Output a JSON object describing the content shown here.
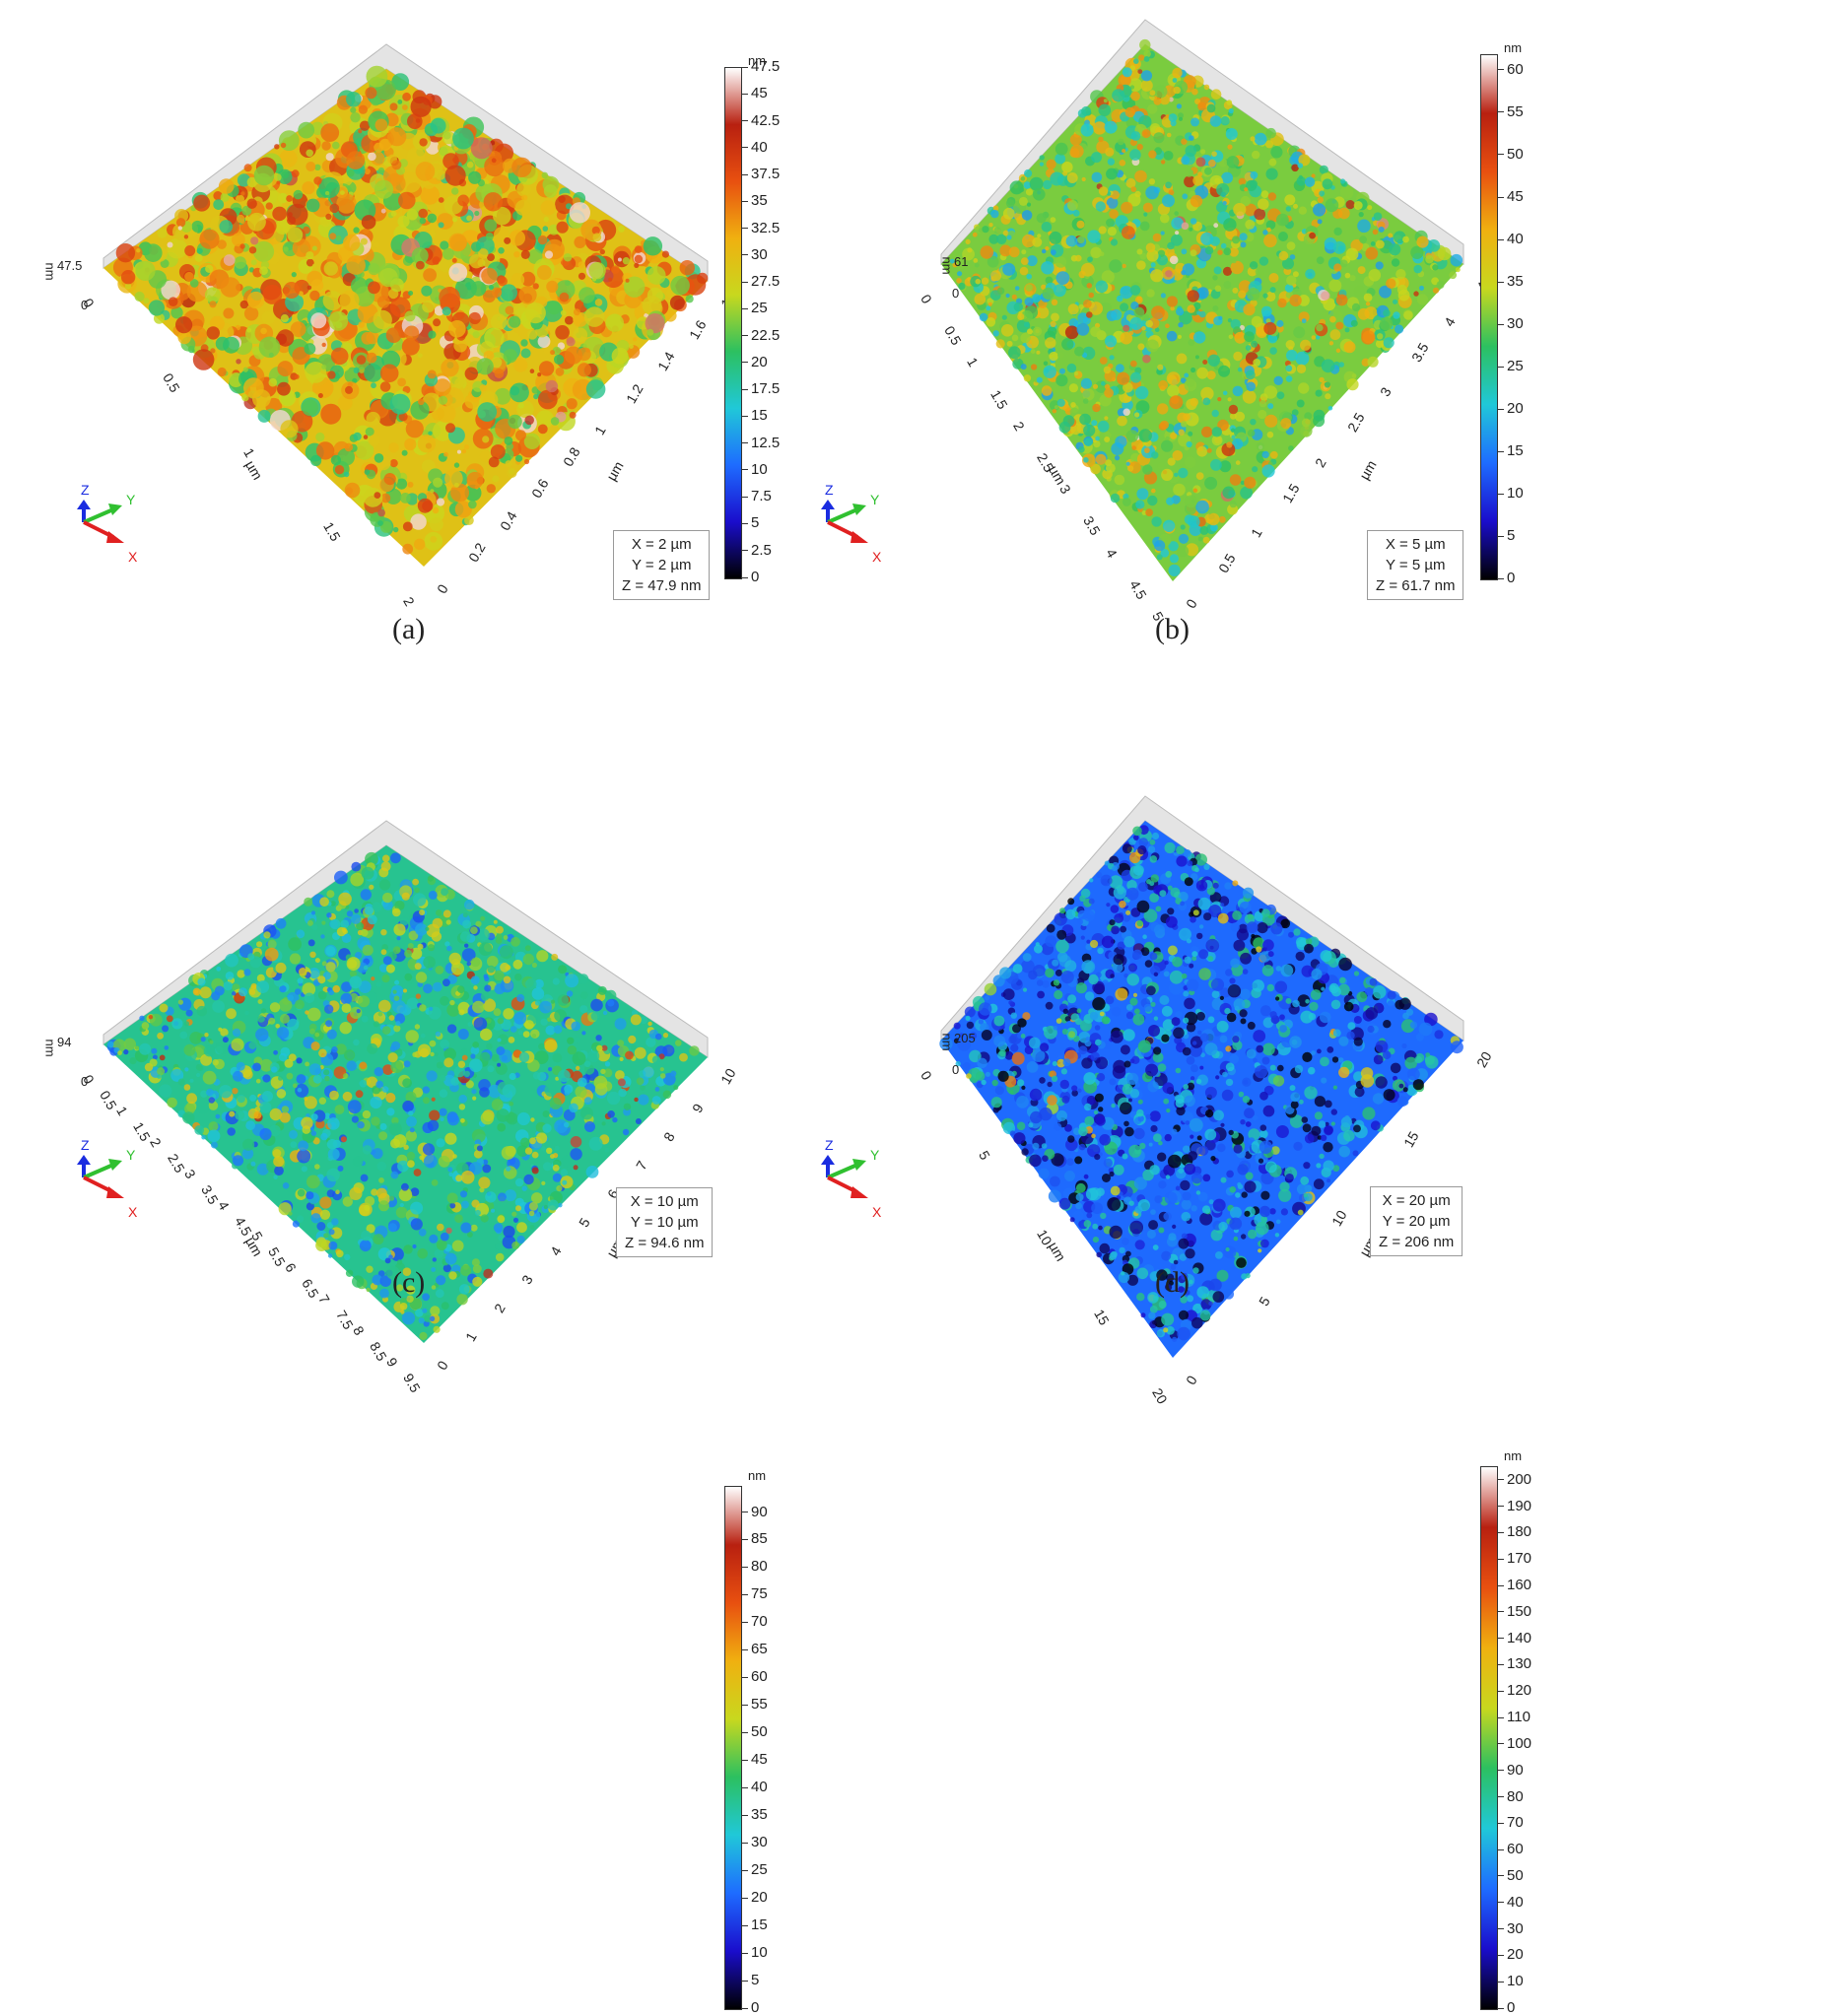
{
  "panels": [
    {
      "caption": "(a)",
      "z_max_label": "47.5",
      "z_zero_label": "0",
      "z_unit": "nm",
      "colorbar_unit": "nm",
      "colorbar_ticks": [
        "47.5",
        "45",
        "42.5",
        "40",
        "37.5",
        "35",
        "32.5",
        "30",
        "27.5",
        "25",
        "22.5",
        "20",
        "17.5",
        "15",
        "12.5",
        "10",
        "7.5",
        "5",
        "2.5",
        "0"
      ],
      "x_ticks": [
        "0",
        "0.5",
        "1",
        "1.5",
        "2"
      ],
      "y_ticks": [
        "0",
        "0.2",
        "0.4",
        "0.6",
        "0.8",
        "1",
        "1.2",
        "1.4",
        "1.6",
        "1.8"
      ],
      "axis_unit": "µm",
      "info": [
        "X = 2 µm",
        "Y = 2 µm",
        "Z = 47.9 nm"
      ],
      "triad": {
        "z": "Z",
        "y": "Y",
        "x": "X"
      },
      "surface_level": 0.62
    },
    {
      "caption": "(b)",
      "z_max_label": "61",
      "z_zero_label": "0",
      "z_unit": "nm",
      "colorbar_unit": "nm",
      "colorbar_ticks": [
        "60",
        "55",
        "50",
        "45",
        "40",
        "35",
        "30",
        "25",
        "20",
        "15",
        "10",
        "5",
        "0"
      ],
      "x_ticks": [
        "0",
        "0.5",
        "1",
        "1.5",
        "2",
        "2.5",
        "3",
        "3.5",
        "4",
        "4.5",
        "5"
      ],
      "y_ticks": [
        "0",
        "0.5",
        "1",
        "1.5",
        "2",
        "2.5",
        "3",
        "3.5",
        "4",
        "4.5"
      ],
      "axis_unit": "µm",
      "info": [
        "X = 5 µm",
        "Y = 5 µm",
        "Z = 61.7 nm"
      ],
      "triad": {
        "z": "Z",
        "y": "Y",
        "x": "X"
      },
      "surface_level": 0.5
    },
    {
      "caption": "(c)",
      "z_max_label": "94",
      "z_zero_label": "0",
      "z_unit": "nm",
      "colorbar_unit": "nm",
      "colorbar_ticks": [
        "90",
        "85",
        "80",
        "75",
        "70",
        "65",
        "60",
        "55",
        "50",
        "45",
        "40",
        "35",
        "30",
        "25",
        "20",
        "15",
        "10",
        "5",
        "0"
      ],
      "x_ticks": [
        "0",
        "0.5",
        "1",
        "1.5",
        "2",
        "2.5",
        "3",
        "3.5",
        "4",
        "4.5",
        "5",
        "5.5",
        "6",
        "6.5",
        "7",
        "7.5",
        "8",
        "8.5",
        "9",
        "9.5"
      ],
      "y_ticks": [
        "0",
        "1",
        "2",
        "3",
        "4",
        "5",
        "6",
        "7",
        "8",
        "9",
        "10"
      ],
      "axis_unit": "µm",
      "info": [
        "X = 10 µm",
        "Y = 10 µm",
        "Z = 94.6 nm"
      ],
      "triad": {
        "z": "Z",
        "y": "Y",
        "x": "X"
      },
      "surface_level": 0.4
    },
    {
      "caption": "(d)",
      "z_max_label": "205",
      "z_zero_label": "0",
      "z_unit": "nm",
      "colorbar_unit": "nm",
      "colorbar_ticks": [
        "200",
        "190",
        "180",
        "170",
        "160",
        "150",
        "140",
        "130",
        "120",
        "110",
        "100",
        "90",
        "80",
        "70",
        "60",
        "50",
        "40",
        "30",
        "20",
        "10",
        "0"
      ],
      "x_ticks": [
        "0",
        "5",
        "10",
        "15",
        "20"
      ],
      "y_ticks": [
        "0",
        "5",
        "10",
        "15",
        "20"
      ],
      "axis_unit": "µm",
      "info": [
        "X = 20 µm",
        "Y = 20 µm",
        "Z = 206 nm"
      ],
      "triad": {
        "z": "Z",
        "y": "Y",
        "x": "X"
      },
      "surface_level": 0.22
    }
  ],
  "colors": {
    "colormap": [
      "#000000",
      "#1a0dcc",
      "#1e6cff",
      "#20c8d8",
      "#2cc060",
      "#c8d81e",
      "#f0b010",
      "#e85010",
      "#b82010",
      "#ffffff"
    ]
  }
}
